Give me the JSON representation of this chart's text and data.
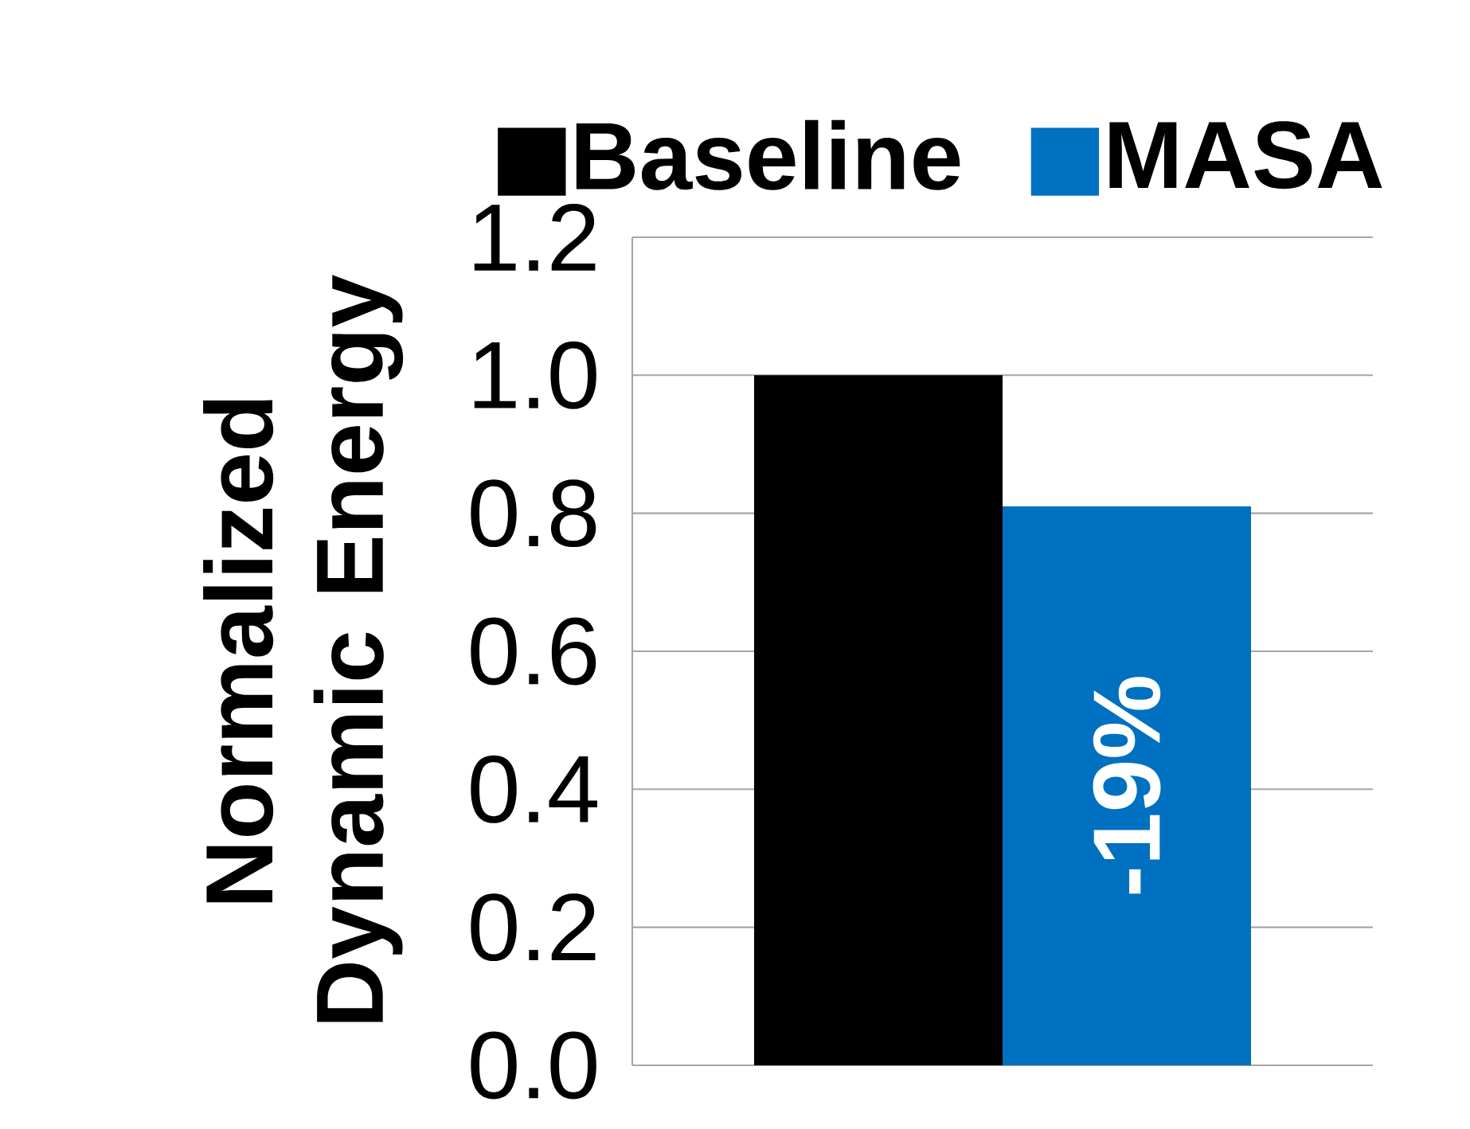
{
  "chart_data": {
    "type": "bar",
    "ylabel": "Normalized Dynamic Energy",
    "categories": [
      null
    ],
    "series": [
      {
        "name": "Baseline",
        "color": "#000000",
        "values": [
          1.0
        ]
      },
      {
        "name": "MASA",
        "color": "#0070c0",
        "values": [
          0.81
        ]
      }
    ],
    "ylim": [
      0,
      1.2
    ],
    "yticks": [
      {
        "value": 0,
        "label": "0.0"
      },
      {
        "value": 0.2,
        "label": "0.2"
      },
      {
        "value": 0.4,
        "label": "0.4"
      },
      {
        "value": 0.6,
        "label": "0.6"
      },
      {
        "value": 0.8,
        "label": "0.8"
      },
      {
        "value": 1.0,
        "label": "1.0"
      },
      {
        "value": 1.2,
        "label": "1.2"
      }
    ],
    "grid": "y",
    "legend": "top",
    "annotations": [
      "-19%"
    ]
  }
}
